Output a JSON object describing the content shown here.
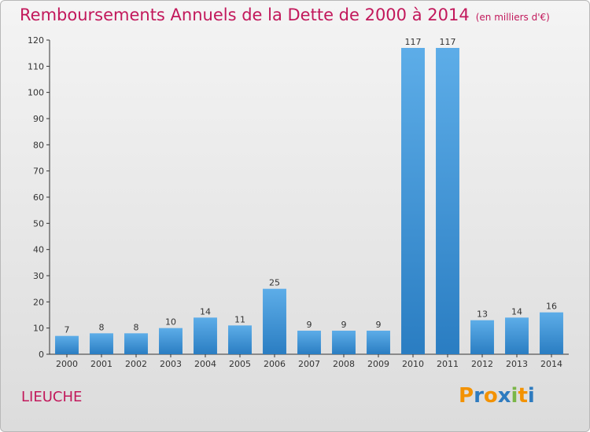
{
  "title": "Remboursements Annuels de la Dette de 2000 à 2014",
  "unit": "(en milliers d'€)",
  "commune": "LIEUCHE",
  "logo": {
    "letters": [
      "P",
      "r",
      "o",
      "x",
      "i",
      "t",
      "i"
    ],
    "colors": [
      "#f39200",
      "#2e7bbf",
      "#f39200",
      "#2e7bbf",
      "#7ab648",
      "#f39200",
      "#2e7bbf"
    ]
  },
  "colors": {
    "title": "#c2185b",
    "bar_top": "#5dade8",
    "bar_bottom": "#2a7dc2"
  },
  "chart_data": {
    "type": "bar",
    "categories": [
      "2000",
      "2001",
      "2002",
      "2003",
      "2004",
      "2005",
      "2006",
      "2007",
      "2008",
      "2009",
      "2010",
      "2011",
      "2012",
      "2013",
      "2014"
    ],
    "values": [
      7,
      8,
      8,
      10,
      14,
      11,
      25,
      9,
      9,
      9,
      117,
      117,
      13,
      14,
      16
    ],
    "ylim": [
      0,
      120
    ],
    "yticks": [
      0,
      10,
      20,
      30,
      40,
      50,
      60,
      70,
      80,
      90,
      100,
      110,
      120
    ],
    "grid": false,
    "legend": "none"
  }
}
